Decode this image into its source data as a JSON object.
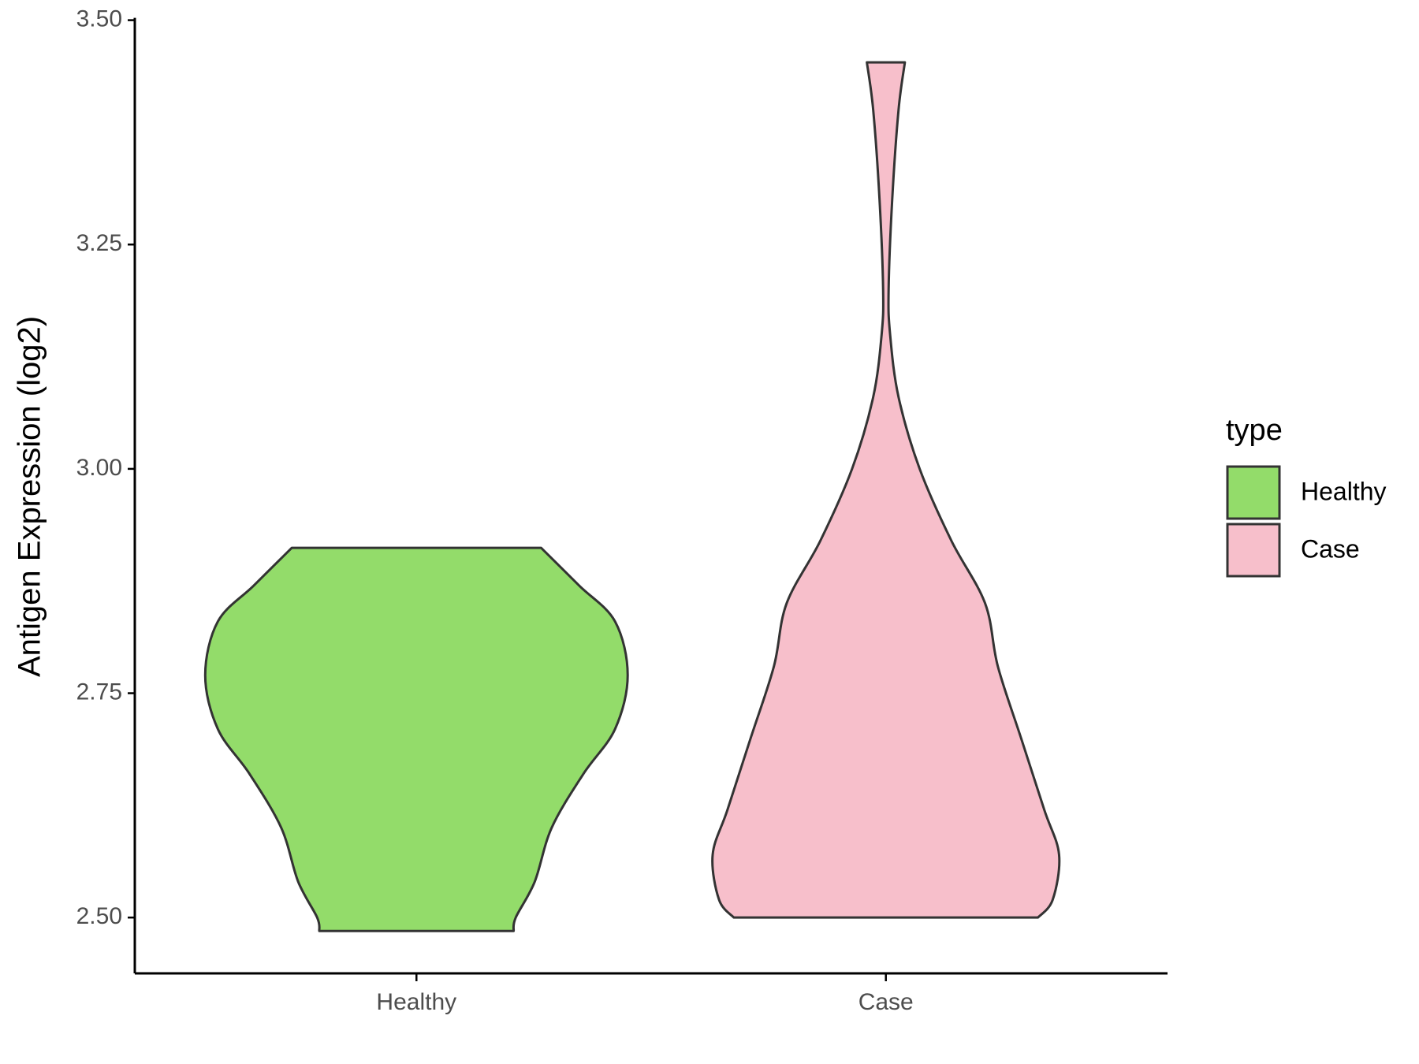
{
  "chart_data": {
    "type": "violin",
    "y_label": "Antigen Expression (log2)",
    "categories": [
      "Healthy",
      "Case"
    ],
    "legend_title": "type",
    "legend_position": "right",
    "series": [
      {
        "name": "Healthy",
        "color": "#93dc6a",
        "y": [
          2.485,
          2.5,
          2.54,
          2.6,
          2.66,
          2.71,
          2.77,
          2.83,
          2.87,
          2.912
        ],
        "widths": [
          0.46,
          0.47,
          0.56,
          0.64,
          0.79,
          0.94,
          1.0,
          0.94,
          0.77,
          0.59
        ]
      },
      {
        "name": "Case",
        "color": "#f7bfcb",
        "y": [
          2.5,
          2.52,
          2.57,
          2.62,
          2.7,
          2.78,
          2.85,
          2.92,
          3.0,
          3.08,
          3.15,
          3.2,
          3.3,
          3.4,
          3.453
        ],
        "widths": [
          0.72,
          0.79,
          0.82,
          0.75,
          0.64,
          0.53,
          0.47,
          0.31,
          0.16,
          0.06,
          0.02,
          0.013,
          0.03,
          0.06,
          0.09
        ]
      }
    ],
    "ylim": [
      2.4378,
      3.5
    ],
    "yticks": [
      {
        "value": 2.5,
        "label": "2.50"
      },
      {
        "value": 2.75,
        "label": "2.75"
      },
      {
        "value": 3.0,
        "label": "3.00"
      },
      {
        "value": 3.25,
        "label": "3.25"
      },
      {
        "value": 3.5,
        "label": "3.50"
      }
    ]
  }
}
